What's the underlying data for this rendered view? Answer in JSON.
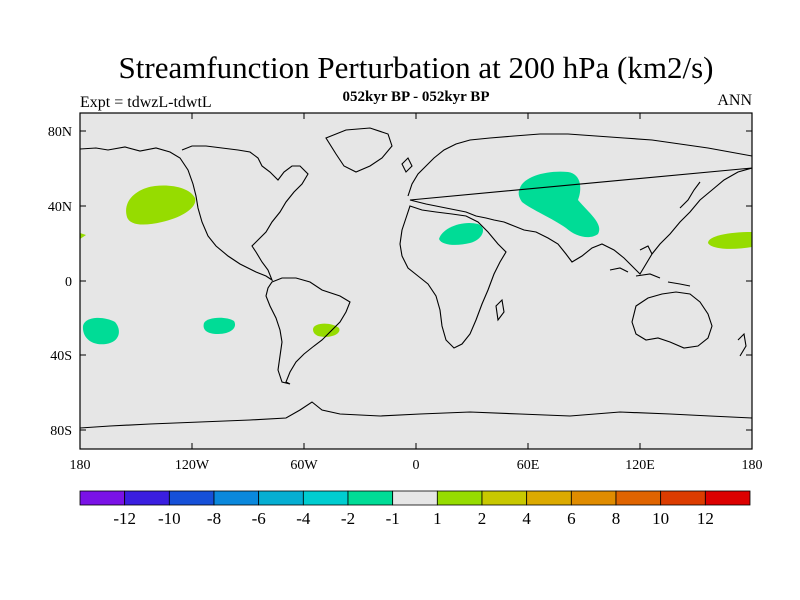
{
  "title": "Streamfunction Perturbation at 200 hPa (km2/s)",
  "subtitle": "052kyr BP - 052kyr BP",
  "left_label": "Expt = tdwzL-tdwtL",
  "right_label": "ANN",
  "lat_ticks": [
    "80N",
    "40N",
    "0",
    "40S",
    "80S"
  ],
  "lon_ticks": [
    "180",
    "120W",
    "60W",
    "0",
    "60E",
    "120E",
    "180"
  ],
  "colorbar": {
    "colors": [
      "#7a12e6",
      "#3a1ee0",
      "#1650d8",
      "#0a88dc",
      "#05aed2",
      "#00cdd0",
      "#00dc96",
      "#e6e6e6",
      "#96dc00",
      "#c8c800",
      "#dcaa00",
      "#e08c00",
      "#e06400",
      "#dc3c00",
      "#dc0000"
    ],
    "labels": [
      "-12",
      "-10",
      "-8",
      "-6",
      "-4",
      "-2",
      "-1",
      "1",
      "2",
      "4",
      "6",
      "8",
      "10",
      "12"
    ]
  },
  "colors": {
    "ocean_land_fill": "#e6e6e6",
    "positive": "#96dc00",
    "negative": "#00dc96"
  }
}
